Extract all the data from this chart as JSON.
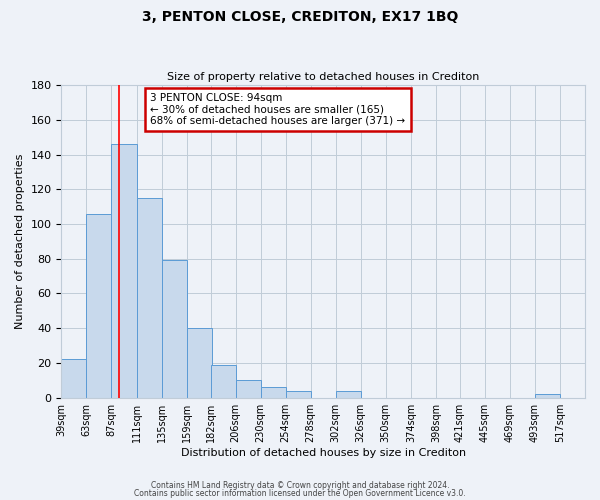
{
  "title": "3, PENTON CLOSE, CREDITON, EX17 1BQ",
  "subtitle": "Size of property relative to detached houses in Crediton",
  "xlabel": "Distribution of detached houses by size in Crediton",
  "ylabel": "Number of detached properties",
  "bar_color": "#c8d9ec",
  "bar_edge_color": "#5b9bd5",
  "grid_color": "#c0ccd8",
  "background_color": "#eef2f8",
  "bin_labels": [
    "39sqm",
    "63sqm",
    "87sqm",
    "111sqm",
    "135sqm",
    "159sqm",
    "182sqm",
    "206sqm",
    "230sqm",
    "254sqm",
    "278sqm",
    "302sqm",
    "326sqm",
    "350sqm",
    "374sqm",
    "398sqm",
    "421sqm",
    "445sqm",
    "469sqm",
    "493sqm",
    "517sqm"
  ],
  "bin_edges": [
    39,
    63,
    87,
    111,
    135,
    159,
    182,
    206,
    230,
    254,
    278,
    302,
    326,
    350,
    374,
    398,
    421,
    445,
    469,
    493,
    517
  ],
  "bar_heights": [
    22,
    106,
    146,
    115,
    79,
    40,
    19,
    10,
    6,
    4,
    0,
    4,
    0,
    0,
    0,
    0,
    0,
    0,
    0,
    2,
    0
  ],
  "vline_x": 94,
  "ylim": [
    0,
    180
  ],
  "yticks": [
    0,
    20,
    40,
    60,
    80,
    100,
    120,
    140,
    160,
    180
  ],
  "annotation_title": "3 PENTON CLOSE: 94sqm",
  "annotation_line1": "← 30% of detached houses are smaller (165)",
  "annotation_line2": "68% of semi-detached houses are larger (371) →",
  "annotation_box_color": "#ffffff",
  "annotation_border_color": "#cc0000",
  "footer1": "Contains HM Land Registry data © Crown copyright and database right 2024.",
  "footer2": "Contains public sector information licensed under the Open Government Licence v3.0."
}
